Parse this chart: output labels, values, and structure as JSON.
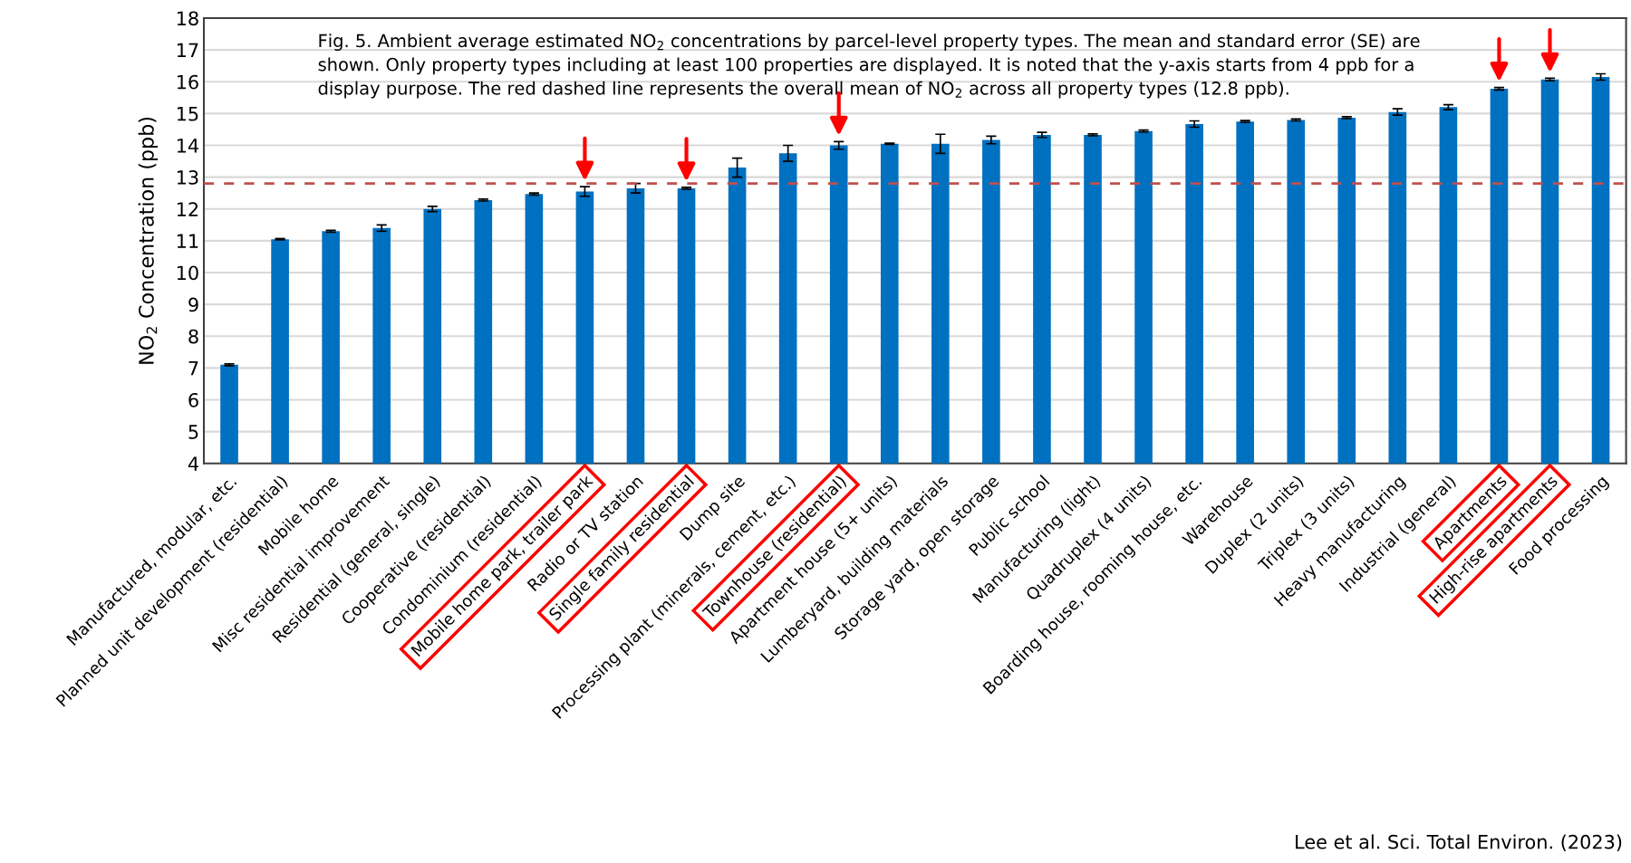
{
  "chart_data": {
    "type": "bar",
    "ylabel": "NO$_{2}$ Concentration (ppb)",
    "categories": [
      "Manufactured, modular, etc.",
      "Planned unit development (residential)",
      "Mobile home",
      "Misc residential improvement",
      "Residential (general, single)",
      "Cooperative (residential)",
      "Condominium (residential)",
      "Mobile home park, trailer park",
      "Radio or TV station",
      "Single family residential",
      "Dump site",
      "Processing plant (minerals, cement, etc.)",
      "Townhouse (residential)",
      "Apartment house (5+ units)",
      "Lumberyard, building materials",
      "Storage yard, open storage",
      "Public school",
      "Manufacturing (light)",
      "Quadruplex (4 units)",
      "Boarding house, rooming house, etc.",
      "Warehouse",
      "Duplex (2 units)",
      "Triplex (3 units)",
      "Heavy manufacturing",
      "Industrial (general)",
      "Apartments",
      "High-rise apartments",
      "Food processing"
    ],
    "series": [
      {
        "color": "#0070c0",
        "values": [
          7.1,
          11.05,
          11.3,
          11.4,
          12.0,
          12.28,
          12.47,
          12.55,
          12.65,
          12.65,
          13.3,
          13.75,
          14.0,
          14.05,
          14.05,
          14.17,
          14.33,
          14.33,
          14.45,
          14.67,
          14.75,
          14.8,
          14.87,
          15.05,
          15.2,
          15.78,
          16.07,
          16.15
        ],
        "errors": [
          0.03,
          0.02,
          0.03,
          0.1,
          0.08,
          0.03,
          0.03,
          0.15,
          0.15,
          0.03,
          0.3,
          0.25,
          0.12,
          0.02,
          0.3,
          0.12,
          0.08,
          0.03,
          0.03,
          0.1,
          0.03,
          0.03,
          0.03,
          0.1,
          0.08,
          0.04,
          0.04,
          0.1
        ]
      }
    ],
    "ylim": [
      4,
      18
    ],
    "yticks": [
      4,
      5,
      6,
      7,
      8,
      9,
      10,
      11,
      12,
      13,
      14,
      15,
      16,
      17,
      18
    ],
    "grid": "y",
    "ref_lines": [
      {
        "axis": "y",
        "value": 12.8,
        "color": "#c0504d",
        "line_style": "dashed"
      }
    ],
    "annotations": [
      "Fig. 5. Ambient average estimated NO$_{2}$ concentrations by parcel-level property types. The mean and standard error (SE) are shown. Only property types including at least 100 properties are displayed. It is noted that the y-axis starts from 4 ppb for a display purpose. The red dashed line represents the overall mean of NO$_{2}$ across all property types (12.8 ppb).",
      "Lee et al. Sci. Total Environ. (2023)"
    ]
  }
}
